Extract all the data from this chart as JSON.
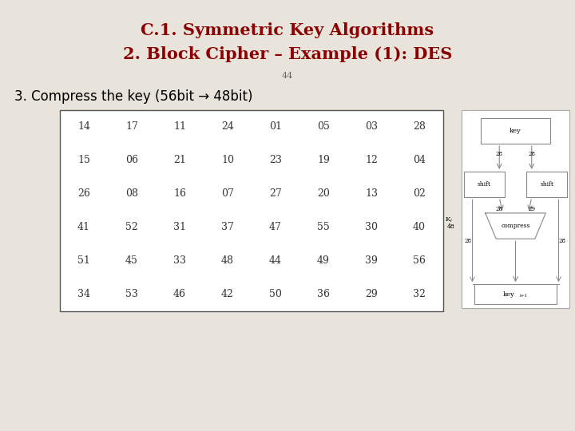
{
  "title_line1": "C.1. Symmetric Key Algorithms",
  "title_line2": "2. Block Cipher – Example (1): DES",
  "title_color": "#8B0000",
  "page_number": "44",
  "background_color": "#E8E4DC",
  "subtitle": "3. Compress the key (56bit → 48bit)",
  "table_data": [
    [
      14,
      17,
      11,
      24,
      1,
      5,
      3,
      28
    ],
    [
      15,
      6,
      21,
      10,
      23,
      19,
      12,
      4
    ],
    [
      26,
      8,
      16,
      7,
      27,
      20,
      13,
      2
    ],
    [
      41,
      52,
      31,
      37,
      47,
      55,
      30,
      40
    ],
    [
      51,
      45,
      33,
      48,
      44,
      49,
      39,
      56
    ],
    [
      34,
      53,
      46,
      42,
      50,
      36,
      29,
      32
    ]
  ],
  "title_fontsize": 15,
  "page_num_fontsize": 8,
  "subtitle_fontsize": 12,
  "table_fontsize": 9
}
